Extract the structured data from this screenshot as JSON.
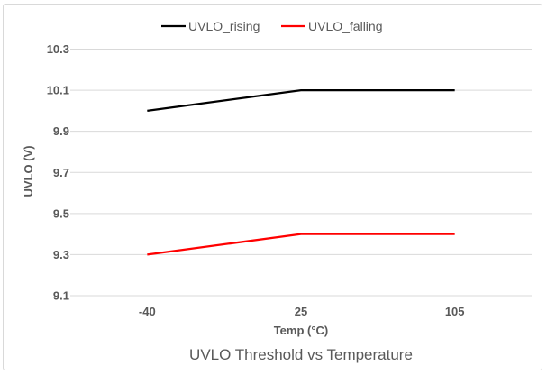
{
  "chart_data": {
    "type": "line",
    "title": "UVLO Threshold vs Temperature",
    "xlabel": "Temp (°C)",
    "ylabel": "UVLO (V)",
    "categories": [
      "-40",
      "25",
      "105"
    ],
    "ylim": [
      9.1,
      10.3
    ],
    "yticks": [
      "9.1",
      "9.3",
      "9.5",
      "9.7",
      "9.9",
      "10.1",
      "10.3"
    ],
    "grid": true,
    "legend_position": "top",
    "series": [
      {
        "name": "UVLO_rising",
        "values": [
          10.0,
          10.1,
          10.1
        ],
        "color": "#000000"
      },
      {
        "name": "UVLO_falling",
        "values": [
          9.3,
          9.4,
          9.4
        ],
        "color": "#ff0000"
      }
    ]
  }
}
